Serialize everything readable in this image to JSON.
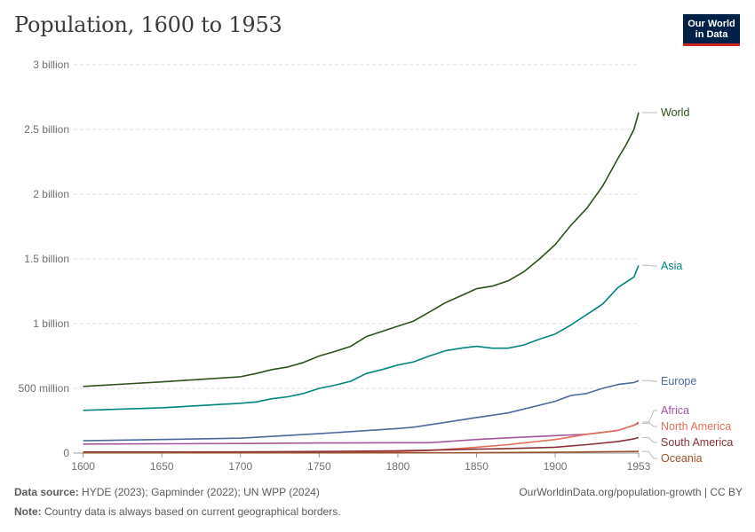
{
  "header": {
    "title": "Population, 1600 to 1953",
    "logo_line1": "Our World",
    "logo_line2": "in Data"
  },
  "footer": {
    "source_label": "Data source:",
    "source_text": "HYDE (2023); Gapminder (2022); UN WPP (2024)",
    "note_label": "Note:",
    "note_text": "Country data is always based on current geographical borders.",
    "url_text": "OurWorldinData.org/population-growth | CC BY"
  },
  "chart_data": {
    "type": "line",
    "title": "Population, 1600 to 1953",
    "xlabel": "",
    "ylabel": "",
    "xlim": [
      1600,
      1953
    ],
    "ylim": [
      0,
      3000000000
    ],
    "grid": "horizontal dashed",
    "legend": "right, labels at line ends",
    "x_ticks": [
      {
        "value": 1600,
        "label": "1600"
      },
      {
        "value": 1650,
        "label": "1650"
      },
      {
        "value": 1700,
        "label": "1700"
      },
      {
        "value": 1750,
        "label": "1750"
      },
      {
        "value": 1800,
        "label": "1800"
      },
      {
        "value": 1850,
        "label": "1850"
      },
      {
        "value": 1900,
        "label": "1900"
      },
      {
        "value": 1953,
        "label": "1953"
      }
    ],
    "y_ticks": [
      {
        "value": 0,
        "label": "0"
      },
      {
        "value": 500000000,
        "label": "500 million"
      },
      {
        "value": 1000000000,
        "label": "1 billion"
      },
      {
        "value": 1500000000,
        "label": "1.5 billion"
      },
      {
        "value": 2000000000,
        "label": "2 billion"
      },
      {
        "value": 2500000000,
        "label": "2.5 billion"
      },
      {
        "value": 3000000000,
        "label": "3 billion"
      }
    ],
    "series": [
      {
        "name": "World",
        "color": "#2c5119",
        "points": [
          [
            1600,
            515000000
          ],
          [
            1650,
            550000000
          ],
          [
            1700,
            590000000
          ],
          [
            1710,
            615000000
          ],
          [
            1720,
            645000000
          ],
          [
            1730,
            665000000
          ],
          [
            1740,
            700000000
          ],
          [
            1750,
            750000000
          ],
          [
            1760,
            785000000
          ],
          [
            1770,
            825000000
          ],
          [
            1780,
            900000000
          ],
          [
            1790,
            940000000
          ],
          [
            1800,
            980000000
          ],
          [
            1810,
            1020000000
          ],
          [
            1820,
            1090000000
          ],
          [
            1830,
            1160000000
          ],
          [
            1840,
            1215000000
          ],
          [
            1850,
            1270000000
          ],
          [
            1860,
            1290000000
          ],
          [
            1870,
            1330000000
          ],
          [
            1880,
            1400000000
          ],
          [
            1890,
            1500000000
          ],
          [
            1900,
            1610000000
          ],
          [
            1910,
            1760000000
          ],
          [
            1920,
            1890000000
          ],
          [
            1930,
            2060000000
          ],
          [
            1940,
            2280000000
          ],
          [
            1945,
            2380000000
          ],
          [
            1950,
            2500000000
          ],
          [
            1953,
            2630000000
          ]
        ]
      },
      {
        "name": "Asia",
        "color": "#00847e",
        "points": [
          [
            1600,
            330000000
          ],
          [
            1650,
            350000000
          ],
          [
            1700,
            385000000
          ],
          [
            1710,
            395000000
          ],
          [
            1720,
            420000000
          ],
          [
            1730,
            435000000
          ],
          [
            1740,
            460000000
          ],
          [
            1750,
            500000000
          ],
          [
            1760,
            525000000
          ],
          [
            1770,
            555000000
          ],
          [
            1780,
            615000000
          ],
          [
            1790,
            645000000
          ],
          [
            1800,
            680000000
          ],
          [
            1810,
            705000000
          ],
          [
            1820,
            750000000
          ],
          [
            1830,
            790000000
          ],
          [
            1840,
            810000000
          ],
          [
            1850,
            825000000
          ],
          [
            1860,
            810000000
          ],
          [
            1870,
            810000000
          ],
          [
            1880,
            835000000
          ],
          [
            1890,
            880000000
          ],
          [
            1900,
            920000000
          ],
          [
            1910,
            990000000
          ],
          [
            1920,
            1070000000
          ],
          [
            1930,
            1150000000
          ],
          [
            1940,
            1280000000
          ],
          [
            1950,
            1360000000
          ],
          [
            1953,
            1450000000
          ]
        ]
      },
      {
        "name": "Europe",
        "color": "#4c6a9c",
        "points": [
          [
            1600,
            95000000
          ],
          [
            1650,
            105000000
          ],
          [
            1700,
            115000000
          ],
          [
            1750,
            150000000
          ],
          [
            1800,
            190000000
          ],
          [
            1810,
            200000000
          ],
          [
            1850,
            275000000
          ],
          [
            1870,
            310000000
          ],
          [
            1900,
            400000000
          ],
          [
            1910,
            445000000
          ],
          [
            1920,
            460000000
          ],
          [
            1930,
            500000000
          ],
          [
            1940,
            530000000
          ],
          [
            1950,
            545000000
          ],
          [
            1953,
            560000000
          ]
        ]
      },
      {
        "name": "Africa",
        "color": "#a2559c",
        "points": [
          [
            1600,
            70000000
          ],
          [
            1650,
            72000000
          ],
          [
            1700,
            74000000
          ],
          [
            1750,
            78000000
          ],
          [
            1800,
            80000000
          ],
          [
            1820,
            80000000
          ],
          [
            1850,
            105000000
          ],
          [
            1870,
            118000000
          ],
          [
            1900,
            135000000
          ],
          [
            1920,
            145000000
          ],
          [
            1940,
            175000000
          ],
          [
            1950,
            215000000
          ],
          [
            1953,
            230000000
          ]
        ]
      },
      {
        "name": "North America",
        "color": "#e56e5a",
        "points": [
          [
            1600,
            3000000
          ],
          [
            1650,
            3000000
          ],
          [
            1700,
            3000000
          ],
          [
            1750,
            5000000
          ],
          [
            1800,
            12000000
          ],
          [
            1820,
            20000000
          ],
          [
            1850,
            45000000
          ],
          [
            1870,
            65000000
          ],
          [
            1900,
            105000000
          ],
          [
            1920,
            145000000
          ],
          [
            1940,
            175000000
          ],
          [
            1950,
            215000000
          ],
          [
            1953,
            240000000
          ]
        ]
      },
      {
        "name": "South America",
        "color": "#883039",
        "points": [
          [
            1600,
            8000000
          ],
          [
            1650,
            8000000
          ],
          [
            1700,
            9000000
          ],
          [
            1750,
            12000000
          ],
          [
            1800,
            18000000
          ],
          [
            1850,
            30000000
          ],
          [
            1870,
            35000000
          ],
          [
            1900,
            45000000
          ],
          [
            1920,
            65000000
          ],
          [
            1940,
            90000000
          ],
          [
            1950,
            110000000
          ],
          [
            1953,
            120000000
          ]
        ]
      },
      {
        "name": "Oceania",
        "color": "#9a5129",
        "points": [
          [
            1600,
            2000000
          ],
          [
            1700,
            2000000
          ],
          [
            1800,
            2000000
          ],
          [
            1850,
            2500000
          ],
          [
            1900,
            6000000
          ],
          [
            1920,
            9000000
          ],
          [
            1950,
            12000000
          ],
          [
            1953,
            13000000
          ]
        ]
      }
    ]
  }
}
